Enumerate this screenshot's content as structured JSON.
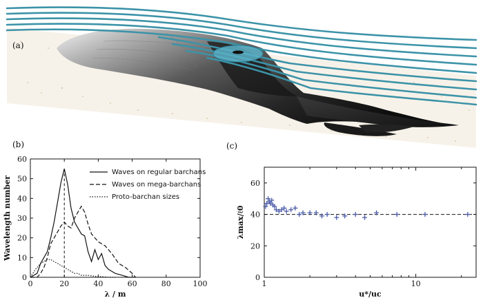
{
  "panel_labels": {
    "a": "(a)",
    "b": "(b)",
    "c": "(c)"
  },
  "colors": {
    "streamlines": "#3c93a8",
    "marker": "#5566aa",
    "dune": "#2a2a2a",
    "sand": "#d8c7ad"
  },
  "chart_data": [
    {
      "type": "line",
      "panel": "(b)",
      "xlabel": "λ / m",
      "ylabel": "Wavelength number",
      "xlim": [
        0,
        100
      ],
      "ylim": [
        0,
        60
      ],
      "xticks": [
        "0",
        "20",
        "40",
        "60",
        "80",
        "100"
      ],
      "yticks": [
        "0",
        "10",
        "20",
        "30",
        "40",
        "50",
        "60"
      ],
      "legend_position": "top-right",
      "vline_x": 20,
      "series": [
        {
          "name": "Waves on regular barchans",
          "style": "solid",
          "x": [
            0,
            4,
            6,
            8,
            10,
            12,
            14,
            16,
            18,
            20,
            22,
            24,
            26,
            28,
            30,
            32,
            34,
            36,
            38,
            40,
            42,
            44,
            46,
            48,
            50,
            54,
            58,
            62
          ],
          "y": [
            0,
            2,
            7,
            10,
            13,
            20,
            28,
            38,
            48,
            55,
            47,
            35,
            28,
            25,
            22,
            21,
            13,
            8,
            14,
            9,
            12,
            6,
            4,
            3,
            2,
            1,
            0,
            0
          ]
        },
        {
          "name": "Waves on mega-barchans",
          "style": "dashed",
          "x": [
            0,
            4,
            6,
            8,
            10,
            12,
            14,
            16,
            18,
            20,
            22,
            24,
            26,
            28,
            30,
            32,
            34,
            36,
            38,
            40,
            44,
            48,
            52,
            56,
            60,
            62
          ],
          "y": [
            0,
            0,
            2,
            5,
            10,
            17,
            20,
            23,
            26,
            28,
            26,
            25,
            30,
            33,
            36,
            33,
            27,
            22,
            20,
            18,
            16,
            12,
            7,
            5,
            2,
            0
          ]
        },
        {
          "name": "Proto-barchan sizes",
          "style": "dotted",
          "x": [
            0,
            3,
            6,
            8,
            10,
            12,
            14,
            16,
            18,
            20,
            22,
            24,
            26,
            28,
            30,
            34,
            38,
            42,
            46,
            50
          ],
          "y": [
            0,
            4,
            7,
            8,
            9,
            9,
            8,
            7,
            6,
            5,
            4,
            3,
            2,
            2,
            1,
            1,
            0.5,
            0.3,
            0,
            0
          ]
        }
      ]
    },
    {
      "type": "scatter",
      "panel": "(c)",
      "xlabel": "u*/uc",
      "ylabel": "λmax/ℓ0",
      "xscale": "log",
      "xlim": [
        1,
        25
      ],
      "ylim": [
        0,
        70
      ],
      "xticks": [
        "1",
        "10"
      ],
      "yticks": [
        "0",
        "20",
        "40",
        "60"
      ],
      "hline_y": 40,
      "marker": "+",
      "x": [
        1.02,
        1.04,
        1.06,
        1.08,
        1.1,
        1.12,
        1.14,
        1.17,
        1.2,
        1.25,
        1.3,
        1.35,
        1.4,
        1.5,
        1.6,
        1.7,
        1.8,
        2.0,
        2.2,
        2.4,
        2.6,
        3.0,
        3.4,
        4.0,
        4.6,
        5.5,
        7.5,
        11.5,
        22
      ],
      "y": [
        45,
        47,
        50,
        48,
        47,
        49,
        46,
        45,
        43,
        42,
        43,
        44,
        42,
        43,
        44,
        40,
        41,
        41,
        41,
        39,
        40,
        38,
        39,
        40,
        38,
        41,
        40,
        40,
        40
      ]
    }
  ]
}
